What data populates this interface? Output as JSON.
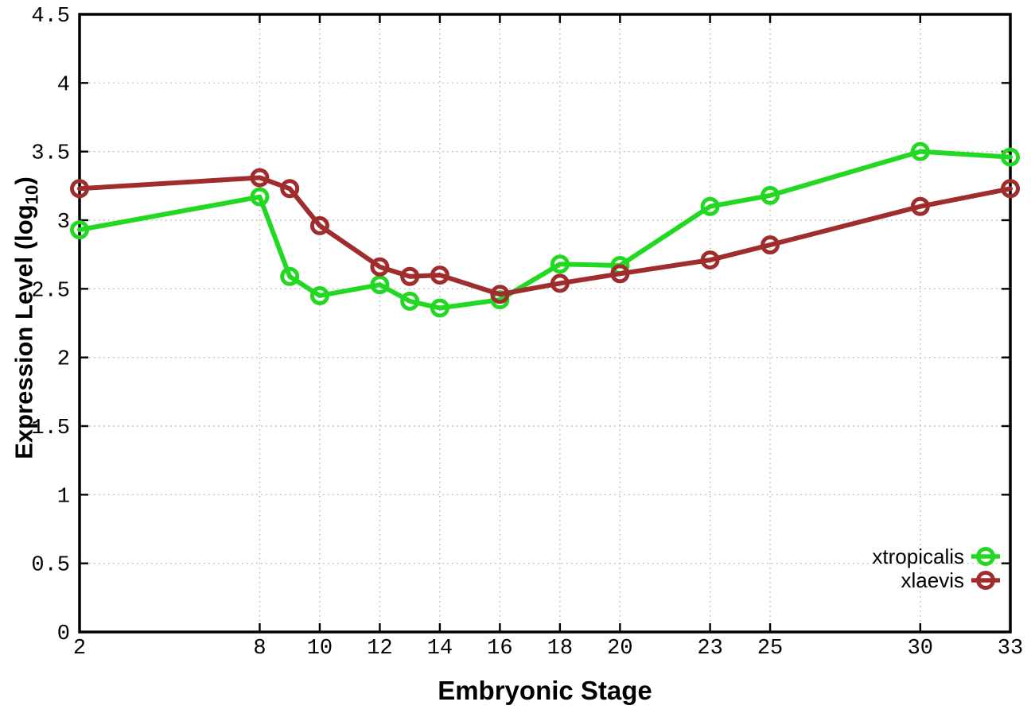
{
  "page": {
    "background": "#ffffff"
  },
  "chart_data": {
    "type": "line",
    "title": "",
    "xlabel": "Embryonic Stage",
    "ylabel": "Expression Level (log10)",
    "ylabel_display": {
      "prefix": "Expression Level (log",
      "sub": "10",
      "suffix": ")"
    },
    "xlim": [
      2,
      33
    ],
    "ylim": [
      0,
      4.5
    ],
    "xticks": [
      2,
      8,
      10,
      12,
      14,
      16,
      18,
      20,
      23,
      25,
      30,
      33
    ],
    "yticks": [
      0,
      0.5,
      1,
      1.5,
      2,
      2.5,
      3,
      3.5,
      4,
      4.5
    ],
    "ytick_labels": [
      "0",
      "0.5",
      "1",
      "1.5",
      "2",
      "2.5",
      "3",
      "3.5",
      "4",
      "4.5"
    ],
    "grid": true,
    "x": [
      2,
      8,
      9,
      10,
      12,
      13,
      14,
      16,
      18,
      20,
      23,
      25,
      30,
      33
    ],
    "series": [
      {
        "name": "xtropicalis",
        "color": "#23d823",
        "marker": "open-circle",
        "values": [
          2.93,
          3.17,
          2.59,
          2.45,
          2.53,
          2.41,
          2.36,
          2.42,
          2.68,
          2.67,
          3.1,
          3.18,
          3.5,
          3.46
        ]
      },
      {
        "name": "xlaevis",
        "color": "#a02d2d",
        "marker": "open-circle",
        "values": [
          3.23,
          3.31,
          3.23,
          2.96,
          2.66,
          2.59,
          2.6,
          2.46,
          2.54,
          2.61,
          2.71,
          2.82,
          3.1,
          3.23
        ]
      }
    ],
    "legend": {
      "position": "inside-bottom-right",
      "entries": [
        "xtropicalis",
        "xlaevis"
      ]
    },
    "colors": {
      "grid": "#b5b5b5",
      "axis": "#000000",
      "text": "#000000"
    }
  }
}
